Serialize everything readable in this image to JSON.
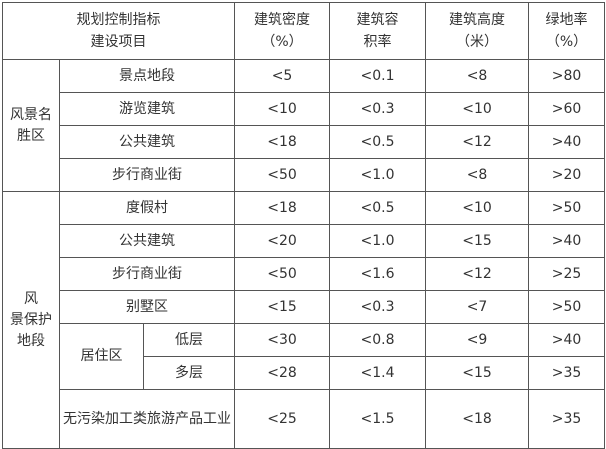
{
  "header": {
    "corner": "规划控制指标\n建设项目",
    "columns": [
      "建筑密度\n（%）",
      "建筑容\n积率",
      "建筑高度\n（米）",
      "绿地率\n（%）"
    ]
  },
  "groups": {
    "scenic": {
      "label": "风景名\n胜区",
      "rows": [
        {
          "name": "景点地段",
          "values": [
            "<5",
            "<0.1",
            "<8",
            ">80"
          ]
        },
        {
          "name": "游览建筑",
          "values": [
            "<10",
            "<0.3",
            "<10",
            ">60"
          ]
        },
        {
          "name": "公共建筑",
          "values": [
            "<18",
            "<0.5",
            "<12",
            ">40"
          ]
        },
        {
          "name": "步行商业街",
          "values": [
            "<50",
            "<1.0",
            "<8",
            ">20"
          ]
        }
      ]
    },
    "protect": {
      "label": "风\n景保护\n地段",
      "rows": [
        {
          "name": "度假村",
          "values": [
            "<18",
            "<0.5",
            "<10",
            ">50"
          ]
        },
        {
          "name": "公共建筑",
          "values": [
            "<20",
            "<1.0",
            "<15",
            ">40"
          ]
        },
        {
          "name": "步行商业街",
          "values": [
            "<50",
            "<1.6",
            "<12",
            ">25"
          ]
        },
        {
          "name": "别墅区",
          "values": [
            "<15",
            "<0.3",
            "<7",
            ">50"
          ]
        }
      ],
      "residential": {
        "label": "居住区",
        "rows": [
          {
            "name": "低层",
            "values": [
              "<30",
              "<0.8",
              "<9",
              ">40"
            ]
          },
          {
            "name": "多层",
            "values": [
              "<28",
              "<1.4",
              "<15",
              ">35"
            ]
          }
        ]
      },
      "last": {
        "name": "无污染加工类旅游产品工业",
        "values": [
          "<25",
          "<1.5",
          "<18",
          ">35"
        ]
      }
    }
  }
}
